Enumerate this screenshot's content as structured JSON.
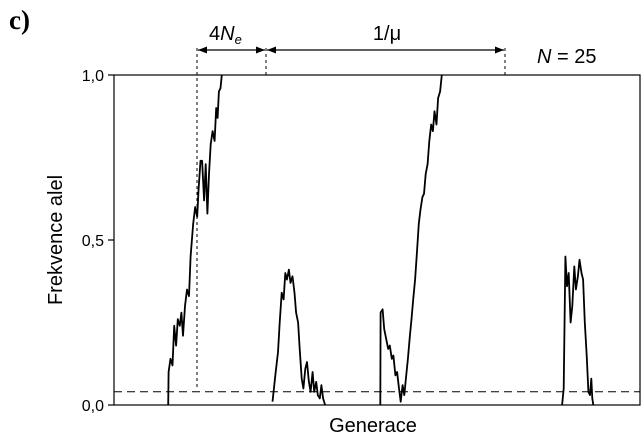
{
  "panel_label": "c)",
  "annotations": {
    "four": "4",
    "n_letter": "N",
    "n_subscript": "e",
    "inv_mu": "1/μ",
    "pop_n": "N",
    "pop_eq": " = 25"
  },
  "colors": {
    "line": "#000000",
    "frame": "#000000",
    "background": "#ffffff"
  },
  "chart_data": {
    "type": "line",
    "title": "",
    "xlabel": "Generace",
    "ylabel": "Frekvence alel",
    "ylim": [
      0,
      1
    ],
    "xlim": [
      0,
      100
    ],
    "yticks": [
      {
        "value": 0,
        "label": "0,0"
      },
      {
        "value": 0.5,
        "label": "0,5"
      },
      {
        "value": 1,
        "label": "1,0"
      }
    ],
    "grid": false,
    "legend": "none",
    "reference_line": {
      "y": 0.04,
      "style": "dashed"
    },
    "series": [
      {
        "values": [
          [
            16.5,
            0.0
          ],
          [
            16.6,
            0.1
          ],
          [
            17.2,
            0.14
          ],
          [
            17.8,
            0.12
          ],
          [
            18.3,
            0.24
          ],
          [
            18.9,
            0.18
          ],
          [
            19.4,
            0.26
          ],
          [
            20.0,
            0.24
          ],
          [
            20.5,
            0.28
          ],
          [
            21.0,
            0.21
          ],
          [
            21.6,
            0.3
          ],
          [
            22.2,
            0.35
          ],
          [
            22.8,
            0.33
          ],
          [
            23.3,
            0.45
          ],
          [
            24.1,
            0.55
          ],
          [
            24.7,
            0.6
          ],
          [
            25.3,
            0.57
          ],
          [
            25.7,
            0.65
          ],
          [
            26.3,
            0.74
          ],
          [
            26.8,
            0.74
          ],
          [
            27.4,
            0.62
          ],
          [
            27.9,
            0.73
          ],
          [
            28.4,
            0.58
          ],
          [
            28.9,
            0.7
          ],
          [
            29.4,
            0.79
          ],
          [
            30.0,
            0.83
          ],
          [
            30.6,
            0.8
          ],
          [
            31.1,
            0.9
          ],
          [
            31.5,
            0.87
          ],
          [
            31.9,
            0.95
          ],
          [
            32.4,
            0.96
          ],
          [
            32.8,
            1.0
          ]
        ]
      },
      {
        "values": [
          [
            48.2,
            0.01
          ],
          [
            49.2,
            0.1
          ],
          [
            49.9,
            0.16
          ],
          [
            50.4,
            0.25
          ],
          [
            51.0,
            0.34
          ],
          [
            51.6,
            0.32
          ],
          [
            52.1,
            0.4
          ],
          [
            52.6,
            0.38
          ],
          [
            53.2,
            0.41
          ],
          [
            53.7,
            0.37
          ],
          [
            54.3,
            0.39
          ],
          [
            54.9,
            0.34
          ],
          [
            55.4,
            0.28
          ],
          [
            56.0,
            0.25
          ],
          [
            56.5,
            0.17
          ],
          [
            57.1,
            0.08
          ],
          [
            57.6,
            0.05
          ],
          [
            58.2,
            0.11
          ],
          [
            58.7,
            0.13
          ],
          [
            59.3,
            0.07
          ],
          [
            59.8,
            0.04
          ],
          [
            60.4,
            0.1
          ],
          [
            60.9,
            0.04
          ],
          [
            61.5,
            0.07
          ],
          [
            62.0,
            0.03
          ],
          [
            62.6,
            0.02
          ],
          [
            63.1,
            0.06
          ],
          [
            63.6,
            0.02
          ],
          [
            64.2,
            0.0
          ]
        ]
      },
      {
        "values": [
          [
            81.0,
            0.0
          ],
          [
            81.1,
            0.28
          ],
          [
            81.7,
            0.29
          ],
          [
            82.2,
            0.23
          ],
          [
            82.8,
            0.2
          ],
          [
            83.4,
            0.17
          ],
          [
            83.9,
            0.18
          ],
          [
            84.5,
            0.14
          ],
          [
            85.0,
            0.15
          ],
          [
            85.6,
            0.09
          ],
          [
            86.1,
            0.1
          ],
          [
            86.7,
            0.05
          ],
          [
            87.2,
            0.01
          ],
          [
            87.8,
            0.06
          ],
          [
            88.3,
            0.03
          ],
          [
            88.8,
            0.08
          ],
          [
            89.4,
            0.14
          ],
          [
            90.0,
            0.21
          ],
          [
            90.5,
            0.26
          ],
          [
            91.0,
            0.32
          ],
          [
            91.6,
            0.38
          ],
          [
            92.2,
            0.47
          ],
          [
            92.7,
            0.55
          ],
          [
            93.2,
            0.59
          ],
          [
            93.8,
            0.63
          ],
          [
            94.3,
            0.64
          ],
          [
            94.8,
            0.7
          ],
          [
            95.4,
            0.73
          ],
          [
            95.9,
            0.8
          ],
          [
            96.5,
            0.85
          ],
          [
            97.0,
            0.83
          ],
          [
            97.5,
            0.89
          ],
          [
            98.1,
            0.85
          ],
          [
            98.6,
            0.93
          ],
          [
            99.2,
            0.95
          ],
          [
            99.7,
            1.0
          ]
        ]
      },
      {
        "values": [
          [
            136.3,
            0.0
          ],
          [
            136.8,
            0.05
          ],
          [
            137.3,
            0.45
          ],
          [
            137.8,
            0.36
          ],
          [
            138.3,
            0.4
          ],
          [
            138.9,
            0.25
          ],
          [
            139.4,
            0.3
          ],
          [
            140.0,
            0.42
          ],
          [
            140.5,
            0.35
          ],
          [
            141.1,
            0.39
          ],
          [
            141.6,
            0.44
          ],
          [
            142.2,
            0.4
          ],
          [
            142.7,
            0.38
          ],
          [
            143.2,
            0.25
          ],
          [
            143.8,
            0.15
          ],
          [
            144.3,
            0.04
          ],
          [
            144.8,
            0.03
          ],
          [
            145.2,
            0.08
          ],
          [
            145.5,
            0.02
          ],
          [
            145.8,
            0.0
          ]
        ]
      }
    ]
  }
}
